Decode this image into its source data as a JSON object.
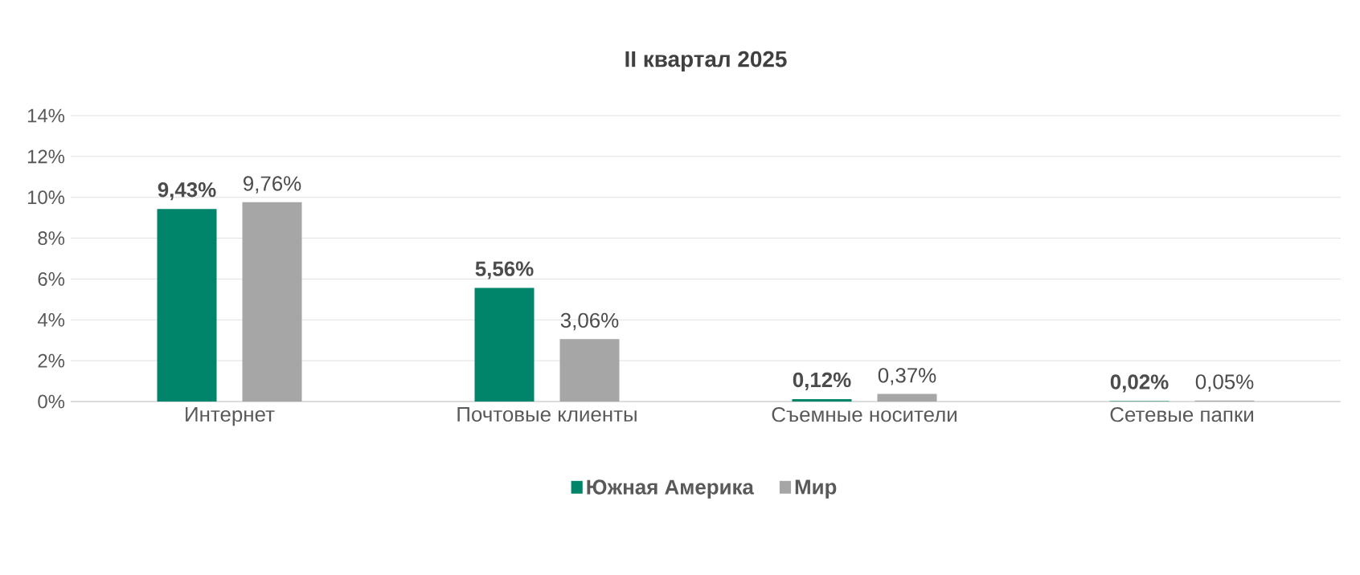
{
  "chart_data": {
    "type": "bar",
    "title": "II квартал 2025",
    "categories": [
      "Интернет",
      "Почтовые клиенты",
      "Съемные носители",
      "Сетевые папки"
    ],
    "series": [
      {
        "name": "Южная Америка",
        "color": "#00856a",
        "values": [
          9.43,
          5.56,
          0.12,
          0.02
        ],
        "value_labels": [
          "9,43%",
          "5,56%",
          "0,12%",
          "0,02%"
        ]
      },
      {
        "name": "Мир",
        "color": "#a6a6a6",
        "values": [
          9.76,
          3.06,
          0.37,
          0.05
        ],
        "value_labels": [
          "9,76%",
          "3,06%",
          "0,37%",
          "0,05%"
        ]
      }
    ],
    "ylim": [
      0,
      14
    ],
    "yticks": [
      {
        "value": 0,
        "label": "0%"
      },
      {
        "value": 2,
        "label": "2%"
      },
      {
        "value": 4,
        "label": "4%"
      },
      {
        "value": 6,
        "label": "6%"
      },
      {
        "value": 8,
        "label": "8%"
      },
      {
        "value": 10,
        "label": "10%"
      },
      {
        "value": 12,
        "label": "12%"
      },
      {
        "value": 14,
        "label": "14%"
      }
    ],
    "grid": "y",
    "legend": "bottom"
  }
}
